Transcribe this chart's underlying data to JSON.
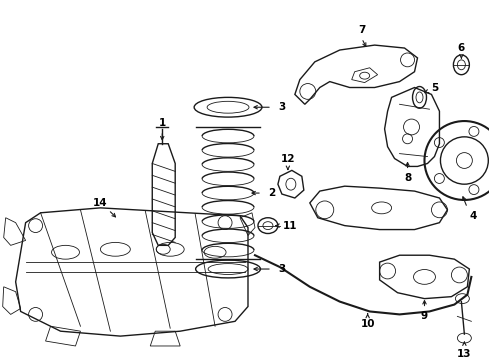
{
  "background_color": "#ffffff",
  "line_color": "#1a1a1a",
  "figsize": [
    4.9,
    3.6
  ],
  "dpi": 100,
  "xlim": [
    0,
    490
  ],
  "ylim": [
    0,
    360
  ],
  "lw_thin": 0.6,
  "lw_med": 1.0,
  "lw_thick": 1.5,
  "label_fontsize": 7.5
}
